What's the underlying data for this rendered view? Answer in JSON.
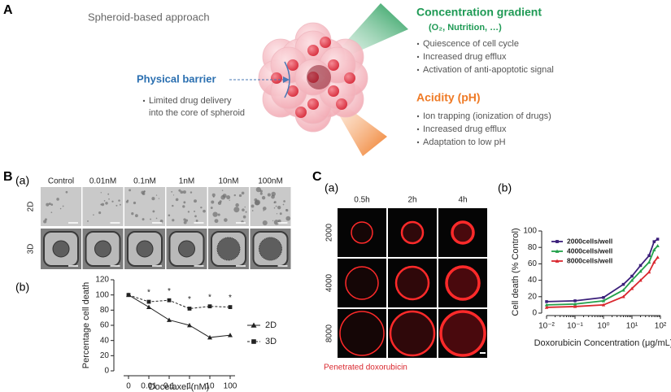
{
  "panel_a": {
    "label": "A",
    "title": "Spheroid-based approach",
    "concentration": {
      "title": "Concentration gradient",
      "subtitle": "(O₂, Nutrition, …)",
      "bullets": [
        "Quiescence of cell cycle",
        "Increased drug efflux",
        "Activation of anti-apoptotic signal"
      ]
    },
    "barrier": {
      "title": "Physical barrier",
      "bullets": [
        "Limited drug delivery",
        "into the core of spheroid"
      ]
    },
    "acidity": {
      "title": "Acidity (pH)",
      "bullets": [
        "Ion trapping (ionization of drugs)",
        "Increased drug efflux",
        "Adaptation to low pH"
      ]
    }
  },
  "panel_b": {
    "label": "B",
    "sub_a": "(a)",
    "sub_b": "(b)",
    "columns": [
      "Control",
      "0.01nM",
      "0.1nM",
      "1nM",
      "10nM",
      "100nM"
    ],
    "rows": [
      "2D",
      "3D"
    ]
  },
  "panel_c": {
    "label": "C",
    "sub_a": "(a)",
    "sub_b": "(b)",
    "columns": [
      "0.5h",
      "2h",
      "4h"
    ],
    "rows": [
      "2000",
      "4000",
      "8000"
    ],
    "caption": "Penetrated doxorubicin"
  },
  "chart_data": [
    {
      "type": "line",
      "x_label": "Docetaxel (nM)",
      "y_label": "Percentage cell death",
      "categories": [
        "0",
        "0.01",
        "0.1",
        "1",
        "10",
        "100"
      ],
      "ylim": [
        0,
        120
      ],
      "yticks": [
        0,
        20,
        40,
        60,
        80,
        100,
        120
      ],
      "significance": [
        null,
        "*",
        "*",
        "*",
        "*",
        "*"
      ],
      "legend": "right",
      "series": [
        {
          "name": "2D",
          "color": "#222222",
          "marker": "triangle",
          "dashed": false,
          "values": [
            100,
            84,
            67,
            60,
            44,
            47
          ]
        },
        {
          "name": "3D",
          "color": "#222222",
          "marker": "square",
          "dashed": true,
          "values": [
            100,
            91,
            93,
            82,
            85,
            84
          ]
        }
      ]
    },
    {
      "type": "line",
      "log_x": true,
      "x_label": "Doxorubicin Concentration (μg/mL)",
      "y_label": "Cell death (% Control)",
      "x": [
        0.01,
        0.1,
        1,
        5,
        10,
        20,
        40,
        60,
        80
      ],
      "xlim": [
        0.01,
        100
      ],
      "xticks": [
        {
          "value": 0.01,
          "label": "10⁻²"
        },
        {
          "value": 0.1,
          "label": "10⁻¹"
        },
        {
          "value": 1,
          "label": "10⁰"
        },
        {
          "value": 10,
          "label": "10¹"
        },
        {
          "value": 100,
          "label": "10²"
        }
      ],
      "ylim": [
        0,
        100
      ],
      "yticks": [
        0,
        20,
        40,
        60,
        80,
        100
      ],
      "legend": "upper-left",
      "series": [
        {
          "name": "2000cells/well",
          "color": "#3b1f7a",
          "marker": "square",
          "values": [
            14,
            15,
            19,
            35,
            45,
            58,
            70,
            87,
            90
          ]
        },
        {
          "name": "4000cells/well",
          "color": "#22a04a",
          "marker": "triangle",
          "values": [
            10,
            11,
            15,
            28,
            40,
            51,
            62,
            77,
            82
          ]
        },
        {
          "name": "8000cells/well",
          "color": "#d9272e",
          "marker": "triangle",
          "values": [
            7,
            8,
            10,
            20,
            30,
            40,
            50,
            62,
            68
          ]
        }
      ]
    }
  ]
}
